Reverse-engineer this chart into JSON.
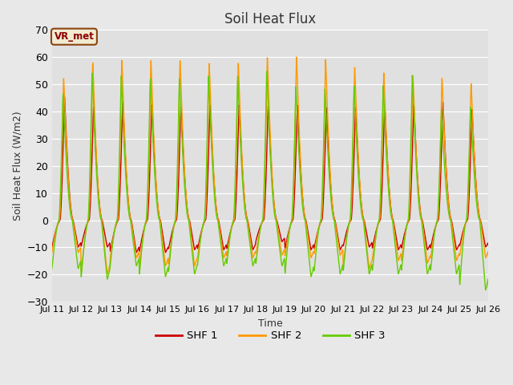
{
  "title": "Soil Heat Flux",
  "xlabel": "Time",
  "ylabel": "Soil Heat Flux (W/m2)",
  "ylim": [
    -30,
    70
  ],
  "yticks": [
    -30,
    -20,
    -10,
    0,
    10,
    20,
    30,
    40,
    50,
    60,
    70
  ],
  "annotation_text": "VR_met",
  "fig_bg_color": "#e8e8e8",
  "plot_bg_color": "#e0e0e0",
  "grid_color": "#ffffff",
  "colors": {
    "SHF 1": "#cc0000",
    "SHF 2": "#ff9900",
    "SHF 3": "#66cc00"
  },
  "n_days": 15,
  "x_tick_labels": [
    "Jul 11",
    "Jul 12",
    "Jul 13",
    "Jul 14",
    "Jul 15",
    "Jul 16",
    "Jul 17",
    "Jul 18",
    "Jul 19",
    "Jul 20",
    "Jul 21",
    "Jul 22",
    "Jul 23",
    "Jul 24",
    "Jul 25",
    "Jul 26"
  ],
  "day_peak_1": [
    47,
    44,
    45,
    44,
    44,
    44,
    44,
    44,
    44,
    43,
    43,
    44,
    44,
    45,
    42
  ],
  "day_peak_2": [
    54,
    60,
    61,
    61,
    61,
    60,
    60,
    62,
    62,
    61,
    58,
    56,
    55,
    54,
    52
  ],
  "day_peak_3": [
    48,
    56,
    55,
    54,
    54,
    55,
    55,
    57,
    51,
    50,
    51,
    51,
    55,
    42,
    43
  ],
  "night_min_1": [
    -10,
    -10,
    -12,
    -12,
    -11,
    -11,
    -11,
    -8,
    -11,
    -11,
    -10,
    -11,
    -11,
    -11,
    -10
  ],
  "night_min_2": [
    -12,
    -20,
    -14,
    -17,
    -17,
    -14,
    -14,
    -13,
    -14,
    -13,
    -18,
    -15,
    -16,
    -15,
    -14
  ],
  "night_min_3": [
    -18,
    -22,
    -17,
    -21,
    -20,
    -17,
    -17,
    -17,
    -21,
    -20,
    -20,
    -20,
    -20,
    -20,
    -26
  ]
}
